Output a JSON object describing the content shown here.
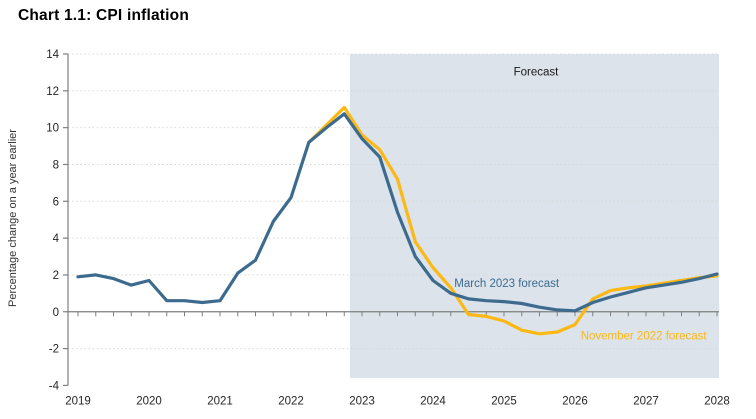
{
  "title": "Chart 1.1: CPI inflation",
  "chart_data": {
    "type": "line",
    "title": "Chart 1.1: CPI inflation",
    "xlabel": "",
    "ylabel": "Percentage change on a year earlier",
    "xlim": [
      2018.859,
      2028.028
    ],
    "ylim": [
      -4,
      14
    ],
    "y_ticks": [
      -4,
      -2,
      0,
      2,
      4,
      6,
      8,
      10,
      12,
      14
    ],
    "x_ticks": [
      2019,
      2020,
      2021,
      2022,
      2023,
      2024,
      2025,
      2026,
      2027,
      2028
    ],
    "x_minor_tick_step": 0.25,
    "grid": "horizontal-dotted",
    "legend_position": "inline-labels",
    "forecast_band": {
      "label": "Forecast",
      "x_start": 2022.83,
      "x_end": 2028.028,
      "y_start": -3.6,
      "y_end": 14,
      "color": "#dce3eb",
      "label_x": 2025.45,
      "label_y": 13.05,
      "label_color": "#1a1a1a"
    },
    "series": [
      {
        "name": "November 2022 forecast",
        "color": "#fcb813",
        "x_start": 2022.25,
        "x_step": 0.25,
        "values": [
          9.2,
          10.15,
          11.1,
          9.6,
          8.8,
          7.2,
          3.8,
          2.4,
          1.3,
          -0.15,
          -0.25,
          -0.5,
          -1.0,
          -1.2,
          -1.1,
          -0.7,
          0.7,
          1.15,
          1.3,
          1.4,
          1.55,
          1.7,
          1.85,
          1.95
        ]
      },
      {
        "name": "March 2023 forecast",
        "color": "#3d6b8e",
        "x_start": 2019.0,
        "x_step": 0.25,
        "values": [
          1.9,
          2.0,
          1.8,
          1.45,
          1.7,
          0.6,
          0.6,
          0.5,
          0.6,
          2.1,
          2.8,
          4.9,
          6.2,
          9.2,
          10.0,
          10.75,
          9.4,
          8.4,
          5.4,
          3.0,
          1.7,
          1.0,
          0.7,
          0.6,
          0.55,
          0.45,
          0.25,
          0.1,
          0.05,
          0.5,
          0.8,
          1.05,
          1.3,
          1.45,
          1.6,
          1.8,
          2.05
        ]
      }
    ],
    "annotations": [
      {
        "text": "March 2023 forecast",
        "x": 2024.3,
        "y": 1.55,
        "color": "#3d6b8e",
        "anchor": "start"
      },
      {
        "text": "November 2022 forecast",
        "x": 2026.08,
        "y": -1.3,
        "color": "#fcb813",
        "anchor": "start"
      },
      {
        "text": "Forecast",
        "x": 2025.45,
        "y": 13.05,
        "color": "#1a1a1a",
        "anchor": "middle"
      }
    ],
    "axis_color": "#7f7f7f",
    "gridline_color": "#d8d8d8",
    "tick_label_color": "#262626"
  }
}
